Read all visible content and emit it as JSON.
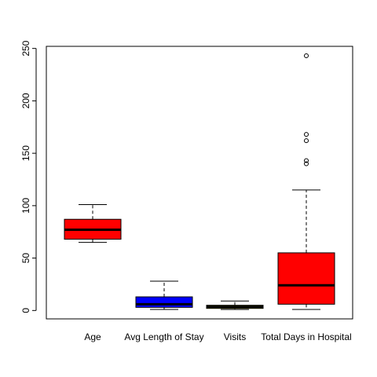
{
  "chart_data": {
    "type": "boxplot",
    "title": "",
    "xlabel": "",
    "ylabel": "",
    "ylim": [
      -8,
      252
    ],
    "y_ticks": [
      0,
      50,
      100,
      150,
      200,
      250
    ],
    "grid": false,
    "legend": "none",
    "categories": [
      "Age",
      "Avg Length of Stay",
      "Visits",
      "Total Days in Hospital"
    ],
    "boxes": [
      {
        "label": "Age",
        "color": "#ff0000",
        "whisker_low": 65,
        "q1": 68,
        "median": 77,
        "q3": 87,
        "whisker_high": 101,
        "outliers": []
      },
      {
        "label": "Avg Length of Stay",
        "color": "#0000ff",
        "whisker_low": 1,
        "q1": 3,
        "median": 6,
        "q3": 13,
        "whisker_high": 28,
        "outliers": []
      },
      {
        "label": "Visits",
        "color": "#ffff00",
        "whisker_low": 1,
        "q1": 2,
        "median": 3.5,
        "q3": 5,
        "whisker_high": 9,
        "outliers": []
      },
      {
        "label": "Total Days in Hospital",
        "color": "#ff0000",
        "whisker_low": 1,
        "q1": 6,
        "median": 24,
        "q3": 55,
        "whisker_high": 115,
        "outliers": [
          140,
          143,
          162,
          168,
          243
        ]
      }
    ]
  }
}
